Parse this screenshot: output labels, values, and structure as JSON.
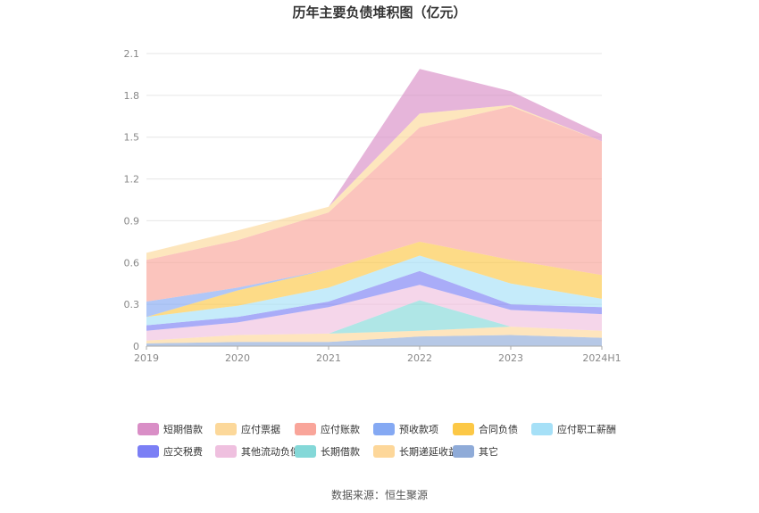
{
  "chart_data": {
    "type": "area",
    "stacked": true,
    "title": "历年主要负债堆积图（亿元）",
    "categories": [
      "2019",
      "2020",
      "2021",
      "2022",
      "2023",
      "2024H1"
    ],
    "ylim": [
      0,
      2.1
    ],
    "yticks": [
      "0",
      "0.3",
      "0.6",
      "0.9",
      "1.2",
      "1.5",
      "1.8",
      "2.1"
    ],
    "grid": true,
    "legend_position": "bottom",
    "series": [
      {
        "name": "其它",
        "color": "#8fabd8",
        "values": [
          0.02,
          0.03,
          0.03,
          0.07,
          0.08,
          0.06
        ]
      },
      {
        "name": "长期递延收益",
        "color": "#fdd79a",
        "values": [
          0.02,
          0.05,
          0.06,
          0.04,
          0.06,
          0.05
        ]
      },
      {
        "name": "长期借款",
        "color": "#84d8d8",
        "values": [
          0,
          0,
          0,
          0.22,
          0,
          0
        ]
      },
      {
        "name": "其他流动负债",
        "color": "#efc0df",
        "values": [
          0.07,
          0.09,
          0.19,
          0.11,
          0.12,
          0.12
        ]
      },
      {
        "name": "应交税费",
        "color": "#7b7ff5",
        "values": [
          0.04,
          0.04,
          0.04,
          0.1,
          0.04,
          0.05
        ]
      },
      {
        "name": "应付职工薪酬",
        "color": "#a6e0f7",
        "values": [
          0.06,
          0.08,
          0.1,
          0.11,
          0.15,
          0.06
        ]
      },
      {
        "name": "合同负债",
        "color": "#fcc846",
        "values": [
          0,
          0.11,
          0.13,
          0.1,
          0.17,
          0.17
        ]
      },
      {
        "name": "预收款项",
        "color": "#85a9f3",
        "values": [
          0.11,
          0.02,
          0,
          0,
          0,
          0
        ]
      },
      {
        "name": "应付账款",
        "color": "#f9a59a",
        "values": [
          0.3,
          0.34,
          0.41,
          0.82,
          1.1,
          0.96
        ]
      },
      {
        "name": "应付票据",
        "color": "#fcd89a",
        "values": [
          0.05,
          0.07,
          0.04,
          0.1,
          0.01,
          0
        ]
      },
      {
        "name": "短期借款",
        "color": "#d98ec6",
        "values": [
          0,
          0,
          0,
          0.32,
          0.1,
          0.05
        ]
      }
    ],
    "legend_order": [
      "短期借款",
      "应付票据",
      "应付账款",
      "预收款项",
      "合同负债",
      "应付职工薪酬",
      "应交税费",
      "其他流动负债",
      "长期借款",
      "长期递延收益",
      "其它"
    ]
  },
  "footer": {
    "source": "数据来源：恒生聚源"
  }
}
